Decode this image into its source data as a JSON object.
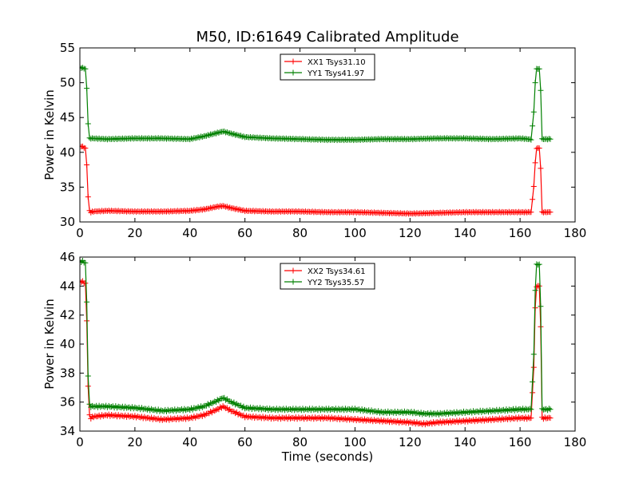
{
  "title": "M50, ID:61649 Calibrated Amplitude",
  "colors": {
    "xx": "#ff0000",
    "yy": "#008000"
  },
  "chart_data": [
    {
      "type": "line",
      "xlabel": "",
      "ylabel": "Power in Kelvin",
      "xlim": [
        0,
        180
      ],
      "ylim": [
        30,
        55
      ],
      "xticks": [
        0,
        20,
        40,
        60,
        80,
        100,
        120,
        140,
        160,
        180
      ],
      "yticks": [
        30,
        35,
        40,
        45,
        50,
        55
      ],
      "legend_position": "top-center",
      "grid": false,
      "series": [
        {
          "name": "XX1 Tsys31.10",
          "color": "#ff0000",
          "x": [
            0,
            1,
            2,
            2.5,
            3,
            3.5,
            4,
            5,
            10,
            20,
            30,
            40,
            45,
            50,
            52,
            55,
            60,
            70,
            80,
            90,
            100,
            110,
            120,
            130,
            140,
            150,
            160,
            163,
            164,
            165,
            165.5,
            166,
            167,
            167.5,
            168,
            169,
            170,
            171
          ],
          "y": [
            40.9,
            40.8,
            40.6,
            38.2,
            33.6,
            31.6,
            31.4,
            31.5,
            31.6,
            31.5,
            31.5,
            31.6,
            31.8,
            32.2,
            32.3,
            32.0,
            31.6,
            31.5,
            31.5,
            31.4,
            31.4,
            31.3,
            31.2,
            31.3,
            31.4,
            31.4,
            31.4,
            31.4,
            31.4,
            35.1,
            38.5,
            40.6,
            40.6,
            37.7,
            31.4,
            31.4,
            31.4,
            31.4
          ]
        },
        {
          "name": "YY1 Tsys41.97",
          "color": "#008000",
          "x": [
            0,
            1,
            2,
            2.5,
            3,
            3.5,
            4,
            5,
            10,
            20,
            30,
            40,
            45,
            50,
            52,
            55,
            60,
            70,
            80,
            90,
            100,
            110,
            120,
            130,
            140,
            150,
            160,
            163,
            164,
            165,
            165.5,
            166,
            167,
            167.5,
            168,
            169,
            170,
            171
          ],
          "y": [
            52.2,
            52.1,
            52.0,
            49.2,
            44.1,
            42.0,
            42.0,
            42.0,
            41.9,
            42.0,
            42.0,
            41.9,
            42.3,
            42.8,
            43.0,
            42.7,
            42.2,
            42.0,
            41.9,
            41.8,
            41.8,
            41.9,
            41.9,
            42.0,
            42.0,
            41.9,
            42.0,
            41.9,
            41.8,
            45.8,
            50.0,
            52.0,
            52.0,
            48.9,
            41.9,
            41.9,
            41.9,
            41.9
          ]
        }
      ]
    },
    {
      "type": "line",
      "xlabel": "Time (seconds)",
      "ylabel": "Power in Kelvin",
      "xlim": [
        0,
        180
      ],
      "ylim": [
        34,
        46
      ],
      "xticks": [
        0,
        20,
        40,
        60,
        80,
        100,
        120,
        140,
        160,
        180
      ],
      "yticks": [
        34,
        36,
        38,
        40,
        42,
        44,
        46
      ],
      "legend_position": "top-center",
      "grid": false,
      "series": [
        {
          "name": "XX2 Tsys34.61",
          "color": "#ff0000",
          "x": [
            0,
            1,
            2,
            2.5,
            3,
            3.5,
            4,
            5,
            10,
            20,
            30,
            40,
            45,
            50,
            52,
            55,
            60,
            70,
            80,
            90,
            100,
            110,
            120,
            125,
            130,
            140,
            150,
            160,
            163,
            164,
            165,
            165.5,
            166,
            167,
            167.5,
            168,
            169,
            170,
            171
          ],
          "y": [
            44.3,
            44.3,
            44.2,
            41.6,
            37.1,
            35.1,
            34.9,
            35.0,
            35.1,
            35.0,
            34.8,
            34.9,
            35.1,
            35.5,
            35.7,
            35.4,
            35.0,
            34.9,
            34.9,
            34.9,
            34.8,
            34.7,
            34.6,
            34.5,
            34.6,
            34.7,
            34.8,
            34.9,
            34.9,
            34.9,
            38.4,
            42.5,
            44.0,
            44.0,
            41.2,
            34.9,
            34.9,
            34.9,
            34.9
          ]
        },
        {
          "name": "YY2 Tsys35.57",
          "color": "#008000",
          "x": [
            0,
            1,
            2,
            2.5,
            3,
            3.5,
            4,
            5,
            10,
            20,
            30,
            40,
            45,
            50,
            52,
            55,
            60,
            70,
            80,
            90,
            100,
            110,
            120,
            125,
            130,
            140,
            150,
            160,
            163,
            164,
            165,
            165.5,
            166,
            167,
            167.5,
            168,
            169,
            170,
            171
          ],
          "y": [
            45.7,
            45.7,
            45.6,
            42.9,
            37.8,
            35.8,
            35.7,
            35.7,
            35.7,
            35.6,
            35.4,
            35.5,
            35.7,
            36.1,
            36.3,
            36.0,
            35.6,
            35.5,
            35.5,
            35.5,
            35.5,
            35.3,
            35.3,
            35.2,
            35.2,
            35.3,
            35.4,
            35.5,
            35.5,
            35.5,
            39.3,
            43.7,
            45.5,
            45.5,
            42.6,
            35.5,
            35.5,
            35.5,
            35.5
          ]
        }
      ]
    }
  ]
}
